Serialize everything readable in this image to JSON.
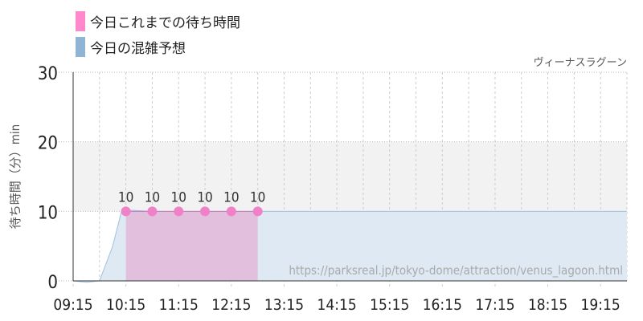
{
  "legend": [
    {
      "label": "今日これまでの待ち時間",
      "color": "#ff88cc"
    },
    {
      "label": "今日の混雑予想",
      "color": "#8fb4d4"
    }
  ],
  "attraction": "ヴィーナスラグーン",
  "watermark": "https://parksreal.jp/tokyo-dome/attraction/venus_lagoon.html",
  "chart_data": {
    "type": "line",
    "ylabel": "待ち時間（分）min",
    "ylim": [
      0,
      30
    ],
    "yticks": [
      0,
      10,
      20,
      30
    ],
    "xlim": [
      "09:15",
      "19:45"
    ],
    "xticks": [
      "09:15",
      "10:15",
      "11:15",
      "12:15",
      "13:15",
      "14:15",
      "15:15",
      "16:15",
      "17:15",
      "18:15",
      "19:15"
    ],
    "highlight_band": [
      10,
      20
    ],
    "series": [
      {
        "name": "今日これまでの待ち時間",
        "kind": "area-points",
        "color": "#ff88cc",
        "x": [
          "10:15",
          "10:45",
          "11:15",
          "11:45",
          "12:15",
          "12:45"
        ],
        "y": [
          10,
          10,
          10,
          10,
          10,
          10
        ],
        "labels": [
          "10",
          "10",
          "10",
          "10",
          "10",
          "10"
        ]
      },
      {
        "name": "今日の混雑予想",
        "kind": "area",
        "color": "#8fb4d4",
        "x": [
          "09:15",
          "09:30",
          "09:45",
          "10:00",
          "10:10",
          "10:15",
          "10:45",
          "19:45"
        ],
        "y": [
          0,
          -0.2,
          0,
          5,
          10,
          10.2,
          10,
          10
        ]
      }
    ]
  }
}
